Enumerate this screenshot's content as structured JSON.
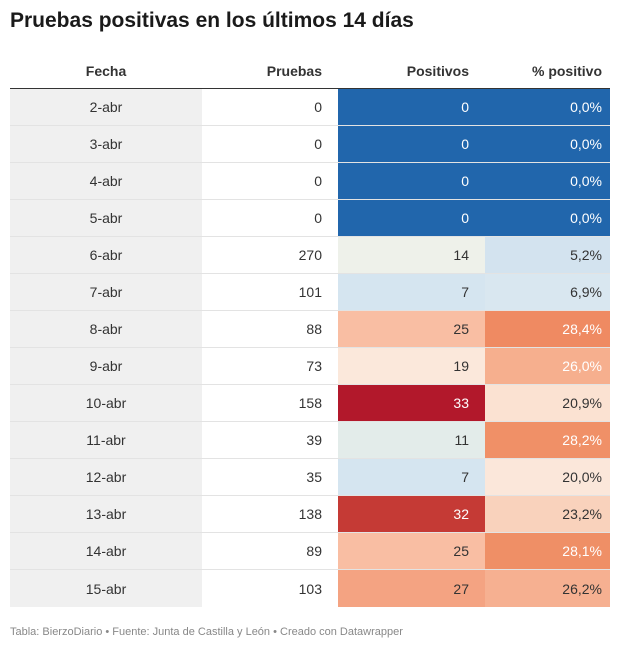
{
  "title": "Pruebas positivas en los últimos 14 días",
  "footer": "Tabla: BierzoDiario • Fuente: Junta de Castilla y León • Creado con Datawrapper",
  "chart_data": {
    "type": "table",
    "columns": [
      "Fecha",
      "Pruebas",
      "Positivos",
      "% positivo"
    ],
    "rows": [
      {
        "fecha": "2-abr",
        "pruebas": "0",
        "positivos": "0",
        "pct": "0,0%",
        "pos_bg": "#2166ac",
        "pos_fg": "#ffffff",
        "pct_bg": "#2166ac",
        "pct_fg": "#ffffff"
      },
      {
        "fecha": "3-abr",
        "pruebas": "0",
        "positivos": "0",
        "pct": "0,0%",
        "pos_bg": "#2166ac",
        "pos_fg": "#ffffff",
        "pct_bg": "#2166ac",
        "pct_fg": "#ffffff"
      },
      {
        "fecha": "4-abr",
        "pruebas": "0",
        "positivos": "0",
        "pct": "0,0%",
        "pos_bg": "#2166ac",
        "pos_fg": "#ffffff",
        "pct_bg": "#2166ac",
        "pct_fg": "#ffffff"
      },
      {
        "fecha": "5-abr",
        "pruebas": "0",
        "positivos": "0",
        "pct": "0,0%",
        "pos_bg": "#2166ac",
        "pos_fg": "#ffffff",
        "pct_bg": "#2166ac",
        "pct_fg": "#ffffff"
      },
      {
        "fecha": "6-abr",
        "pruebas": "270",
        "positivos": "14",
        "pct": "5,2%",
        "pos_bg": "#eef1ea",
        "pos_fg": "#333333",
        "pct_bg": "#d3e3ef",
        "pct_fg": "#333333"
      },
      {
        "fecha": "7-abr",
        "pruebas": "101",
        "positivos": "7",
        "pct": "6,9%",
        "pos_bg": "#d5e5f0",
        "pos_fg": "#333333",
        "pct_bg": "#d9e7f0",
        "pct_fg": "#333333"
      },
      {
        "fecha": "8-abr",
        "pruebas": "88",
        "positivos": "25",
        "pct": "28,4%",
        "pos_bg": "#f9bea3",
        "pos_fg": "#333333",
        "pct_bg": "#ef8a62",
        "pct_fg": "#ffffff"
      },
      {
        "fecha": "9-abr",
        "pruebas": "73",
        "positivos": "19",
        "pct": "26,0%",
        "pos_bg": "#fbe8db",
        "pos_fg": "#333333",
        "pct_bg": "#f6af8e",
        "pct_fg": "#ffffff"
      },
      {
        "fecha": "10-abr",
        "pruebas": "158",
        "positivos": "33",
        "pct": "20,9%",
        "pos_bg": "#b2182b",
        "pos_fg": "#ffffff",
        "pct_bg": "#fbe2d2",
        "pct_fg": "#333333"
      },
      {
        "fecha": "11-abr",
        "pruebas": "39",
        "positivos": "11",
        "pct": "28,2%",
        "pos_bg": "#e3ecea",
        "pos_fg": "#333333",
        "pct_bg": "#f09067",
        "pct_fg": "#ffffff"
      },
      {
        "fecha": "12-abr",
        "pruebas": "35",
        "positivos": "7",
        "pct": "20,0%",
        "pos_bg": "#d5e5f0",
        "pos_fg": "#333333",
        "pct_bg": "#fbe7da",
        "pct_fg": "#333333"
      },
      {
        "fecha": "13-abr",
        "pruebas": "138",
        "positivos": "32",
        "pct": "23,2%",
        "pos_bg": "#c53a35",
        "pos_fg": "#ffffff",
        "pct_bg": "#f9d2bc",
        "pct_fg": "#333333"
      },
      {
        "fecha": "14-abr",
        "pruebas": "89",
        "positivos": "25",
        "pct": "28,1%",
        "pos_bg": "#f9bea3",
        "pos_fg": "#333333",
        "pct_bg": "#ef8f66",
        "pct_fg": "#ffffff"
      },
      {
        "fecha": "15-abr",
        "pruebas": "103",
        "positivos": "27",
        "pct": "26,2%",
        "pos_bg": "#f4a382",
        "pos_fg": "#333333",
        "pct_bg": "#f6b091",
        "pct_fg": "#333333"
      }
    ]
  }
}
